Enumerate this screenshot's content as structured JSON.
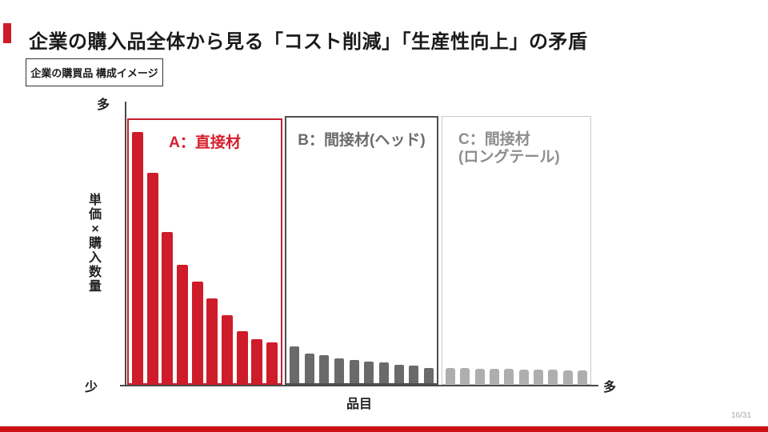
{
  "slide": {
    "title": "企業の購入品全体から見る「コスト削減」「生産性向上」の矛盾",
    "tag_box_label": "企業の購買品 構成イメージ",
    "page_number": "16/31",
    "accent_color": "#ce1b28",
    "footer_bar_color": "#cb1015"
  },
  "chart_data": {
    "type": "bar",
    "title": "企業の購買品 構成イメージ",
    "xlabel": "品目",
    "ylabel": "単価×購入数量",
    "y_axis_top_label": "多",
    "y_axis_bottom_label": "少",
    "x_axis_right_label": "多",
    "values_unit": "relative bar height, percent of plot height (conceptual chart, no numeric scale)",
    "grid": false,
    "legend": "none",
    "sections": [
      {
        "id": "A",
        "label": "A：直接材",
        "label_color": "#d41f2c",
        "bar_color": "#ce1c2a",
        "border_color": "#c9202e",
        "values": [
          95.5,
          79.8,
          57.5,
          44.9,
          38.6,
          32.2,
          25.9,
          19.9,
          16.6,
          15.4
        ]
      },
      {
        "id": "B",
        "label": "B：間接材(ヘッド)",
        "label_color": "#6b6b6b",
        "bar_color": "#6a6a6a",
        "border_color": "#4f4f4f",
        "values": [
          13.9,
          11.1,
          10.5,
          9.3,
          8.7,
          8.1,
          7.8,
          6.9,
          6.6,
          5.7
        ]
      },
      {
        "id": "C",
        "label": "C：間接材",
        "label_line2": "(ロングテール)",
        "label_color": "#8e8e8e",
        "bar_color": "#aeaeae",
        "border_color": "#c9c9c9",
        "values": [
          6.0,
          6.0,
          5.7,
          5.7,
          5.7,
          5.4,
          5.4,
          5.4,
          5.1,
          5.1
        ]
      }
    ]
  }
}
